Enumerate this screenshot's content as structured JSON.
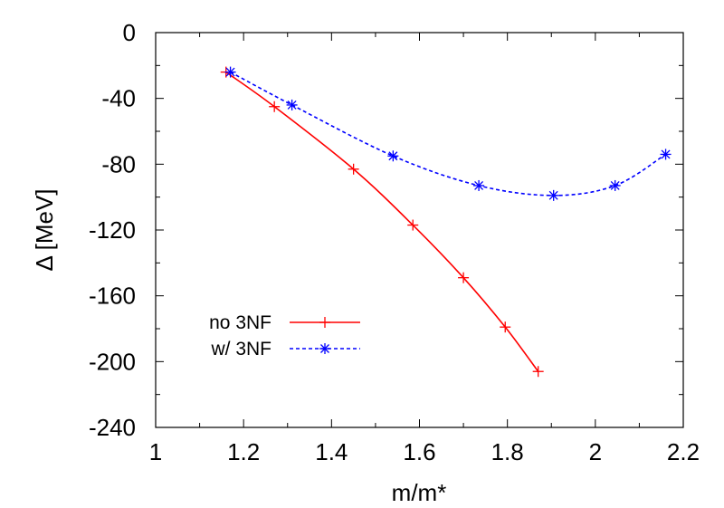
{
  "chart_data": {
    "type": "line",
    "xlabel": "m/m*",
    "ylabel": "Δ [MeV]",
    "xlim": [
      1,
      2.2
    ],
    "ylim": [
      -240,
      0
    ],
    "xticks": [
      "1",
      "1.2",
      "1.4",
      "1.6",
      "1.8",
      "2",
      "2.2"
    ],
    "yticks": [
      "0",
      "-40",
      "-80",
      "-120",
      "-160",
      "-200",
      "-240"
    ],
    "grid": false,
    "legend_position": "bottom-left",
    "series": [
      {
        "name": "no 3NF",
        "color": "#ff0000",
        "line_style": "solid",
        "marker": "plus",
        "x": [
          1.16,
          1.27,
          1.45,
          1.585,
          1.7,
          1.795,
          1.87
        ],
        "y": [
          -24,
          -45,
          -83,
          -117,
          -149,
          -179,
          -206
        ]
      },
      {
        "name": "w/ 3NF",
        "color": "#0000ff",
        "line_style": "dashed",
        "marker": "star",
        "x": [
          1.17,
          1.31,
          1.54,
          1.735,
          1.905,
          2.045,
          2.16
        ],
        "y": [
          -24,
          -44,
          -75,
          -93,
          -99,
          -93,
          -74
        ]
      }
    ]
  }
}
